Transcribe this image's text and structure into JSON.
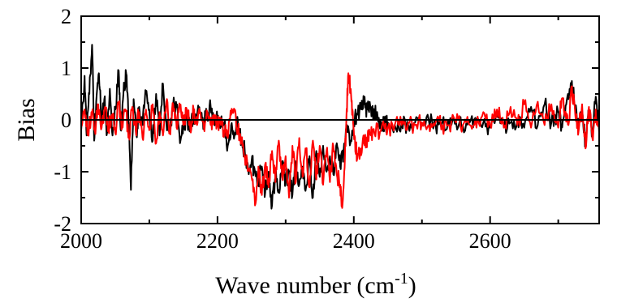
{
  "chart_data": {
    "type": "line",
    "title": "",
    "xlabel": "Wave number (cm",
    "xlabel_sup": "-1",
    "xlabel_close": ")",
    "ylabel": "Bias",
    "xlim": [
      2000,
      2760
    ],
    "ylim": [
      -2,
      2
    ],
    "xticks": [
      2000,
      2200,
      2400,
      2600
    ],
    "xtick_labels": [
      "2000",
      "2200",
      "2400",
      "2600"
    ],
    "yticks": [
      -2,
      -1,
      0,
      1,
      2
    ],
    "ytick_labels": [
      "-2",
      "-1",
      "0",
      "1",
      "2"
    ],
    "grid": false,
    "legend": "none",
    "zero_line": 0,
    "series": [
      {
        "color": "#000000",
        "x": [
          2000,
          2005,
          2008,
          2012,
          2016,
          2019,
          2022,
          2026,
          2030,
          2034,
          2038,
          2042,
          2046,
          2050,
          2055,
          2058,
          2062,
          2066,
          2070,
          2073,
          2077,
          2081,
          2085,
          2090,
          2095,
          2100,
          2105,
          2110,
          2115,
          2120,
          2125,
          2130,
          2135,
          2140,
          2145,
          2150,
          2155,
          2160,
          2165,
          2170,
          2175,
          2180,
          2185,
          2190,
          2195,
          2200,
          2205,
          2210,
          2215,
          2220,
          2225,
          2230,
          2235,
          2240,
          2245,
          2250,
          2255,
          2260,
          2265,
          2270,
          2275,
          2280,
          2285,
          2290,
          2295,
          2300,
          2305,
          2310,
          2315,
          2320,
          2325,
          2330,
          2335,
          2340,
          2345,
          2350,
          2355,
          2360,
          2365,
          2370,
          2375,
          2380,
          2385,
          2390,
          2395,
          2400,
          2405,
          2410,
          2415,
          2420,
          2425,
          2430,
          2435,
          2440,
          2445,
          2450,
          2460,
          2470,
          2480,
          2490,
          2500,
          2510,
          2520,
          2530,
          2540,
          2550,
          2560,
          2570,
          2580,
          2590,
          2600,
          2610,
          2620,
          2630,
          2640,
          2650,
          2660,
          2670,
          2680,
          2690,
          2700,
          2705,
          2710,
          2715,
          2720,
          2725,
          2730,
          2735,
          2740,
          2745,
          2750,
          2755,
          2760
        ],
        "y": [
          -0.2,
          0.85,
          -0.3,
          0.5,
          1.45,
          -0.4,
          0.35,
          0.9,
          -0.1,
          0.4,
          -0.25,
          0.6,
          -0.3,
          0.2,
          0.95,
          -0.2,
          0.5,
          0.9,
          -0.1,
          -1.35,
          0.4,
          -0.3,
          0.25,
          -0.1,
          0.55,
          0.2,
          -0.4,
          0.5,
          -0.3,
          0.7,
          -0.05,
          -0.25,
          0.3,
          0.25,
          -0.45,
          -0.05,
          0.0,
          -0.1,
          0.05,
          0.1,
          0.15,
          -0.05,
          0.1,
          0.25,
          -0.05,
          0.0,
          -0.1,
          -0.05,
          -0.5,
          -0.1,
          -0.3,
          -0.05,
          -0.4,
          -0.6,
          -0.95,
          -0.8,
          -1.0,
          -1.2,
          -0.9,
          -1.4,
          -1.0,
          -1.65,
          -1.1,
          -1.35,
          -0.8,
          -1.2,
          -1.0,
          -1.45,
          -0.85,
          -1.25,
          -0.9,
          -1.3,
          -0.7,
          -1.5,
          -0.6,
          -1.1,
          -0.5,
          -1.0,
          -0.7,
          -1.05,
          -0.45,
          -0.9,
          -0.6,
          -0.1,
          -0.45,
          0.0,
          0.1,
          0.25,
          0.3,
          0.2,
          0.25,
          0.15,
          0.05,
          -0.05,
          -0.1,
          -0.05,
          -0.1,
          -0.05,
          -0.1,
          -0.05,
          -0.05,
          0.0,
          -0.1,
          -0.05,
          -0.1,
          -0.05,
          -0.1,
          -0.05,
          0.0,
          -0.05,
          -0.15,
          0.1,
          -0.1,
          -0.05,
          0.0,
          -0.15,
          0.25,
          -0.1,
          0.3,
          -0.05,
          0.15,
          -0.1,
          0.1,
          0.4,
          0.75,
          0.2,
          -0.1,
          0.15,
          -0.45,
          0.15,
          -0.3,
          0.45,
          -0.2
        ]
      },
      {
        "color": "#ff0000",
        "x": [
          2000,
          2005,
          2010,
          2015,
          2020,
          2025,
          2030,
          2035,
          2040,
          2045,
          2050,
          2055,
          2060,
          2065,
          2070,
          2075,
          2080,
          2085,
          2090,
          2095,
          2100,
          2105,
          2110,
          2115,
          2120,
          2125,
          2130,
          2135,
          2140,
          2145,
          2150,
          2155,
          2160,
          2165,
          2170,
          2175,
          2180,
          2185,
          2190,
          2195,
          2200,
          2205,
          2210,
          2215,
          2220,
          2225,
          2230,
          2235,
          2240,
          2245,
          2250,
          2255,
          2260,
          2265,
          2270,
          2275,
          2280,
          2285,
          2290,
          2295,
          2300,
          2305,
          2310,
          2315,
          2320,
          2325,
          2330,
          2335,
          2340,
          2345,
          2350,
          2355,
          2360,
          2365,
          2370,
          2375,
          2380,
          2383,
          2386,
          2389,
          2392,
          2395,
          2398,
          2401,
          2405,
          2410,
          2415,
          2420,
          2425,
          2430,
          2440,
          2450,
          2460,
          2470,
          2480,
          2490,
          2500,
          2510,
          2520,
          2530,
          2540,
          2550,
          2560,
          2570,
          2580,
          2590,
          2600,
          2610,
          2620,
          2630,
          2640,
          2650,
          2660,
          2670,
          2680,
          2690,
          2700,
          2705,
          2710,
          2715,
          2720,
          2725,
          2730,
          2735,
          2740,
          2745,
          2750,
          2755,
          2760
        ],
        "y": [
          -0.1,
          0.2,
          -0.3,
          0.15,
          -0.2,
          0.3,
          -0.15,
          0.25,
          -0.2,
          0.1,
          -0.25,
          0.3,
          -0.15,
          0.2,
          -0.3,
          0.25,
          -0.2,
          0.15,
          -0.35,
          0.2,
          -0.2,
          0.3,
          -0.45,
          0.15,
          -0.3,
          0.35,
          -0.2,
          0.3,
          -0.15,
          0.25,
          -0.1,
          0.2,
          -0.15,
          0.2,
          -0.1,
          0.15,
          -0.15,
          0.15,
          -0.1,
          0.1,
          -0.05,
          -0.1,
          -0.2,
          -0.35,
          0.1,
          0.2,
          -0.2,
          -0.45,
          -0.7,
          -0.95,
          -1.1,
          -1.65,
          -0.9,
          -1.45,
          -0.85,
          -1.3,
          -0.6,
          -1.2,
          -0.4,
          -1.1,
          -0.7,
          -1.5,
          -0.5,
          -1.2,
          -0.35,
          -1.1,
          -0.6,
          -1.3,
          -0.4,
          -1.15,
          -0.5,
          -1.25,
          -0.6,
          -1.2,
          -0.5,
          -1.05,
          -1.25,
          -1.7,
          -1.0,
          0.0,
          0.9,
          0.6,
          0.2,
          -0.3,
          -0.75,
          -0.55,
          -0.45,
          -0.35,
          -0.3,
          -0.25,
          -0.2,
          -0.15,
          -0.1,
          -0.1,
          -0.05,
          -0.1,
          -0.05,
          -0.1,
          -0.05,
          -0.1,
          -0.1,
          -0.05,
          -0.1,
          -0.1,
          -0.15,
          0.15,
          -0.1,
          0.2,
          -0.15,
          0.25,
          -0.1,
          0.3,
          -0.15,
          0.35,
          -0.1,
          0.3,
          -0.15,
          0.4,
          0.15,
          -0.1,
          0.65,
          0.1,
          -0.2,
          0.3,
          -0.55,
          0.25,
          -0.35,
          0.2,
          -0.25
        ]
      }
    ]
  }
}
